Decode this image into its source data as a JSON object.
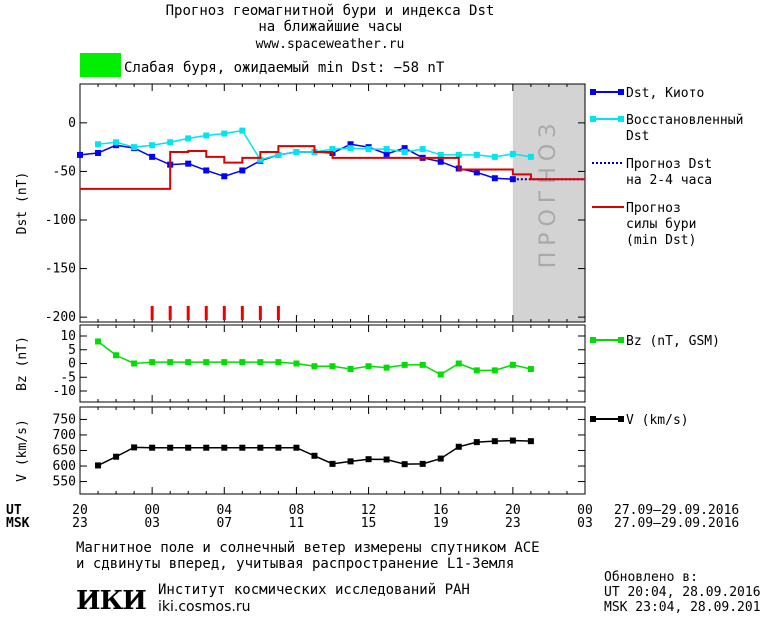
{
  "header": {
    "title_line1": "Прогноз геомагнитной бури и индекса Dst",
    "title_line2": "на ближайшие часы",
    "url": "www.spaceweather.ru",
    "status_color": "#00ee00",
    "status_text": "Слабая буря, ожидаемый min Dst: −58 nT"
  },
  "footer": {
    "note_line1": "Магнитное поле и солнечный ветер измерены спутником ACE",
    "note_line2": "и сдвинуты вперед, учитывая распространение L1-Земля",
    "institute": "Институт космических исследований РАН",
    "site": "iki.cosmos.ru",
    "logo_text": "ИКИ",
    "updated_label": "Обновлено в:",
    "updated_ut": "UT  20:04, 28.09.2016",
    "updated_msk": "MSK 23:04, 28.09.2016"
  },
  "time_axis": {
    "ut_label": "UT",
    "msk_label": "MSK",
    "ut_ticks": [
      "20",
      "00",
      "04",
      "08",
      "12",
      "16",
      "20",
      "00"
    ],
    "msk_ticks": [
      "23",
      "03",
      "07",
      "11",
      "15",
      "19",
      "23",
      "03"
    ],
    "ut_range": "27.09–29.09.2016",
    "msk_range": "27.09–29.09.2016",
    "xlim": [
      0,
      28
    ]
  },
  "chart_data": [
    {
      "type": "line",
      "ylabel": "Dst (nT)",
      "ylim": [
        -205,
        40
      ],
      "yticks": [
        0,
        -50,
        -100,
        -150,
        -200
      ],
      "forecast_band": {
        "from": 24,
        "to": 28,
        "label": "ПРОГНОЗ",
        "color": "#d3d3d3"
      },
      "storm_ticks_x": [
        4,
        5,
        6,
        7,
        8,
        9,
        10,
        11
      ],
      "series": [
        {
          "name": "Dst, Киото",
          "color": "#0000ff",
          "marker": "square",
          "x": [
            0,
            1,
            2,
            3,
            4,
            5,
            6,
            7,
            8,
            9,
            10,
            11,
            12,
            13,
            14,
            15,
            16,
            17,
            18,
            19,
            20,
            21,
            22,
            23,
            24
          ],
          "y": [
            -33,
            -31,
            -23,
            -26,
            -35,
            -43,
            -42,
            -49,
            -55,
            -49,
            -39,
            -33,
            -30,
            -30,
            -31,
            -22,
            -25,
            -32,
            -26,
            -36,
            -40,
            -47,
            -51,
            -57,
            -58
          ]
        },
        {
          "name": "Восстановленный Dst",
          "color": "#00e5ee",
          "marker": "square",
          "x": [
            1,
            2,
            3,
            4,
            5,
            6,
            7,
            8,
            9,
            10,
            11,
            12,
            13,
            14,
            15,
            16,
            17,
            18,
            19,
            20,
            21,
            22,
            23,
            24,
            25
          ],
          "y": [
            -22,
            -20,
            -25,
            -23,
            -20,
            -16,
            -13,
            -11,
            -8,
            -38,
            -33,
            -30,
            -30,
            -27,
            -26,
            -27,
            -27,
            -30,
            -27,
            -33,
            -33,
            -33,
            -35,
            -32,
            -35
          ]
        },
        {
          "name": "Прогноз Dst на 2-4 часа",
          "color": "#0000aa",
          "dashed": true,
          "x": [
            24,
            28
          ],
          "y": [
            -58,
            -58
          ]
        },
        {
          "name": "Прогноз силы бури (min Dst)",
          "color": "#dd0000",
          "step": true,
          "x": [
            0,
            4,
            5,
            6,
            7,
            8,
            9,
            10,
            11,
            12,
            13,
            14,
            15,
            16,
            17,
            18,
            19,
            20,
            21,
            22,
            23,
            24,
            25,
            26,
            27,
            28
          ],
          "y": [
            -68,
            -68,
            -30,
            -29,
            -35,
            -41,
            -36,
            -30,
            -24,
            -24,
            -30,
            -36,
            -36,
            -36,
            -36,
            -36,
            -36,
            -36,
            -48,
            -48,
            -48,
            -53,
            -58,
            -58,
            -58,
            -58
          ]
        }
      ]
    },
    {
      "type": "line",
      "ylabel": "Bz (nT)",
      "ylim": [
        -14,
        14
      ],
      "yticks": [
        10,
        5,
        0,
        -5,
        -10
      ],
      "series": [
        {
          "name": "Bz (nT, GSM)",
          "color": "#00dd00",
          "marker": "square",
          "x": [
            1,
            2,
            3,
            4,
            5,
            6,
            7,
            8,
            9,
            10,
            11,
            12,
            13,
            14,
            15,
            16,
            17,
            18,
            19,
            20,
            21,
            22,
            23,
            24,
            25
          ],
          "y": [
            8,
            3,
            0,
            0.5,
            0.5,
            0.5,
            0.5,
            0.5,
            0.5,
            0.5,
            0.5,
            0,
            -1,
            -1,
            -2,
            -1,
            -1.5,
            -0.5,
            -0.5,
            -4,
            0,
            -2.5,
            -2.5,
            -0.5,
            -2
          ]
        }
      ]
    },
    {
      "type": "line",
      "ylabel": "V (km/s)",
      "ylim": [
        510,
        790
      ],
      "yticks": [
        750,
        700,
        650,
        600,
        550
      ],
      "series": [
        {
          "name": "V (km/s)",
          "color": "#000000",
          "marker": "square",
          "x": [
            1,
            2,
            3,
            4,
            5,
            6,
            7,
            8,
            9,
            10,
            11,
            12,
            13,
            14,
            15,
            16,
            17,
            18,
            19,
            20,
            21,
            22,
            23,
            24,
            25
          ],
          "y": [
            602,
            630,
            660,
            659,
            659,
            659,
            659,
            659,
            659,
            659,
            659,
            659,
            633,
            607,
            615,
            622,
            621,
            606,
            607,
            624,
            662,
            677,
            680,
            682,
            680
          ]
        }
      ]
    }
  ]
}
